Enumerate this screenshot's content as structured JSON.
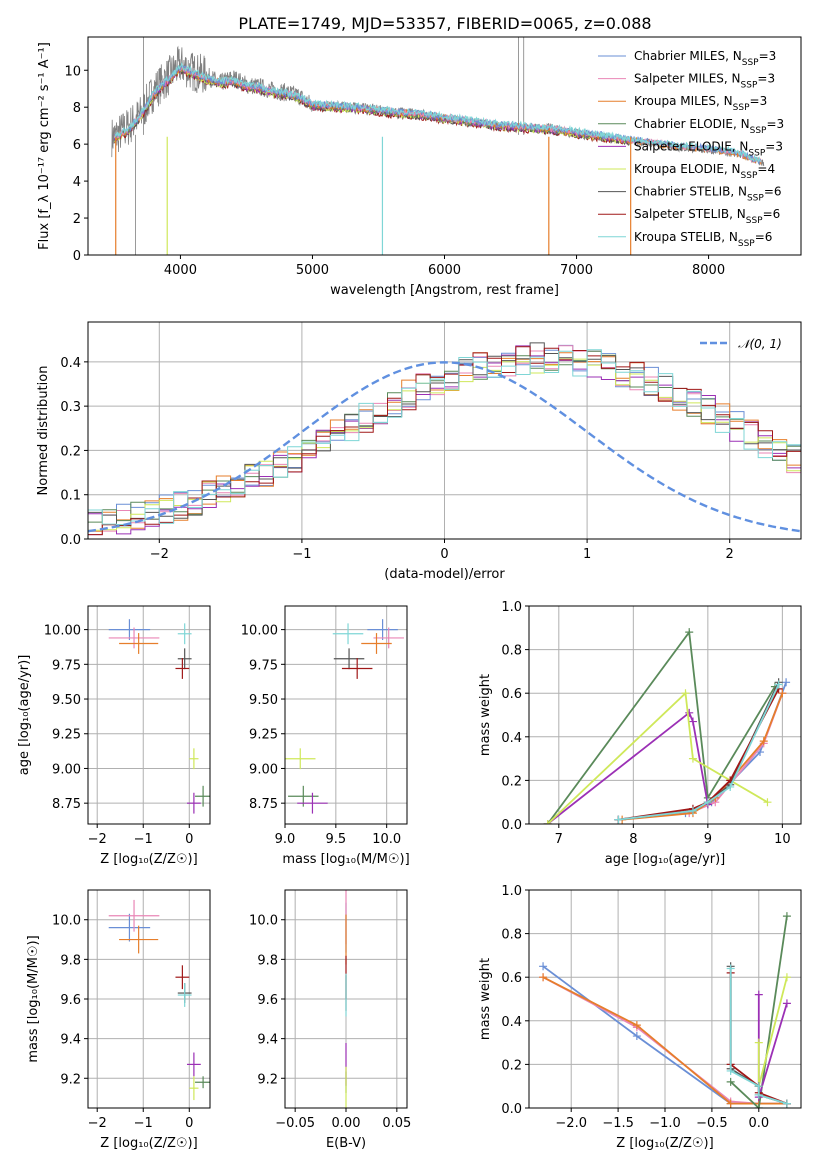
{
  "figure_title": "PLATE=1749, MJD=53357, FIBERID=0065, z=0.088",
  "colors": {
    "chabrier_miles": "#6a8fd6",
    "salpeter_miles": "#e986b6",
    "kroupa_miles": "#e67e2b",
    "chabrier_elodie": "#5a8a5a",
    "salpeter_elodie": "#9b30b5",
    "kroupa_elodie": "#cfe85a",
    "chabrier_stelib": "#555555",
    "salpeter_stelib": "#a01818",
    "kroupa_stelib": "#7fd6d6",
    "data": "#808080",
    "normal": "#6090e0"
  },
  "chart_data": [
    {
      "id": "spectrum",
      "type": "line",
      "title": "PLATE=1749, MJD=53357, FIBERID=0065, z=0.088",
      "xlabel": "wavelength [Angstrom, rest frame]",
      "ylabel": "Flux [f_λ 10⁻¹⁷ erg cm⁻² s⁻¹ A⁻¹]",
      "xlim": [
        3300,
        8700
      ],
      "ylim": [
        0,
        11.8
      ],
      "xticks": [
        "4000",
        "5000",
        "6000",
        "7000",
        "8000"
      ],
      "yticks": [
        "0",
        "2",
        "4",
        "6",
        "8",
        "10"
      ],
      "grid": false,
      "legend_position": "top-right",
      "legend": [
        "Chabrier MILES, N_SSP=3",
        "Salpeter MILES, N_SSP=3",
        "Kroupa MILES, N_SSP=3",
        "Chabrier ELODIE, N_SSP=3",
        "Salpeter ELODIE, N_SSP=3",
        "Kroupa ELODIE, N_SSP=4",
        "Chabrier STELIB, N_SSP=6",
        "Salpeter STELIB, N_SSP=6",
        "Kroupa STELIB, N_SSP=6"
      ],
      "data_points": [
        [
          3500,
          6.4
        ],
        [
          3600,
          6.9
        ],
        [
          3700,
          7.6
        ],
        [
          3800,
          8.9
        ],
        [
          3900,
          9.6
        ],
        [
          4000,
          10.3
        ],
        [
          4100,
          9.9
        ],
        [
          4200,
          9.7
        ],
        [
          4300,
          9.3
        ],
        [
          4400,
          9.6
        ],
        [
          4500,
          9.2
        ],
        [
          4600,
          9.1
        ],
        [
          4700,
          8.9
        ],
        [
          4800,
          8.8
        ],
        [
          4900,
          8.6
        ],
        [
          5000,
          8.1
        ],
        [
          5200,
          8.1
        ],
        [
          5400,
          8.0
        ],
        [
          5600,
          7.8
        ],
        [
          5800,
          7.7
        ],
        [
          6000,
          7.4
        ],
        [
          6200,
          7.2
        ],
        [
          6400,
          7.0
        ],
        [
          6600,
          6.9
        ],
        [
          6800,
          6.9
        ],
        [
          7000,
          6.6
        ],
        [
          7200,
          6.4
        ],
        [
          7400,
          6.2
        ],
        [
          7600,
          6.0
        ],
        [
          7800,
          5.8
        ],
        [
          8000,
          5.7
        ],
        [
          8200,
          5.5
        ],
        [
          8400,
          5.0
        ]
      ],
      "model_points": [
        [
          3500,
          6.3
        ],
        [
          3600,
          6.7
        ],
        [
          3700,
          7.5
        ],
        [
          3800,
          8.7
        ],
        [
          3900,
          9.4
        ],
        [
          4000,
          10.1
        ],
        [
          4100,
          9.8
        ],
        [
          4200,
          9.5
        ],
        [
          4300,
          9.3
        ],
        [
          4400,
          9.4
        ],
        [
          4500,
          9.1
        ],
        [
          4600,
          9.0
        ],
        [
          4700,
          8.8
        ],
        [
          4800,
          8.7
        ],
        [
          4900,
          8.5
        ],
        [
          5000,
          8.1
        ],
        [
          5200,
          8.0
        ],
        [
          5400,
          7.9
        ],
        [
          5600,
          7.7
        ],
        [
          5800,
          7.6
        ],
        [
          6000,
          7.4
        ],
        [
          6200,
          7.2
        ],
        [
          6400,
          7.0
        ],
        [
          6600,
          6.9
        ],
        [
          6800,
          6.8
        ],
        [
          7000,
          6.6
        ],
        [
          7200,
          6.4
        ],
        [
          7400,
          6.2
        ],
        [
          7600,
          6.0
        ],
        [
          7800,
          5.8
        ],
        [
          8000,
          5.7
        ],
        [
          8200,
          5.5
        ],
        [
          8400,
          5.0
        ]
      ]
    },
    {
      "id": "residuals",
      "type": "line",
      "xlabel": "(data-model)/error",
      "ylabel": "Normed distribution",
      "xlim": [
        -2.5,
        2.5
      ],
      "ylim": [
        0,
        0.49
      ],
      "xticks": [
        "−2",
        "−1",
        "0",
        "1",
        "2"
      ],
      "yticks": [
        "0.0",
        "0.1",
        "0.2",
        "0.3",
        "0.4"
      ],
      "grid": true,
      "legend_position": "top-right",
      "legend": [
        "𝒩(0, 1)"
      ],
      "bin_width": 0.1,
      "hist_base": [
        0.035,
        0.04,
        0.045,
        0.05,
        0.058,
        0.066,
        0.075,
        0.086,
        0.097,
        0.109,
        0.122,
        0.136,
        0.151,
        0.167,
        0.183,
        0.2,
        0.218,
        0.236,
        0.254,
        0.272,
        0.29,
        0.307,
        0.324,
        0.339,
        0.354,
        0.367,
        0.378,
        0.388,
        0.396,
        0.402,
        0.406,
        0.408,
        0.408,
        0.406,
        0.402,
        0.396,
        0.388,
        0.378,
        0.367,
        0.354,
        0.339,
        0.324,
        0.307,
        0.29,
        0.272,
        0.254,
        0.236,
        0.218,
        0.2,
        0.183
      ]
    },
    {
      "id": "age_vs_Z",
      "type": "scatter",
      "xlabel": "Z [log₁₀(Z/Z☉)]",
      "ylabel": "age [log₁₀(age/yr)]",
      "xlim": [
        -2.2,
        0.45
      ],
      "ylim": [
        8.6,
        10.17
      ],
      "xticks": [
        "−2",
        "−1",
        "0"
      ],
      "yticks": [
        "8.75",
        "9.00",
        "9.25",
        "9.50",
        "9.75",
        "10.00"
      ],
      "grid": true
    },
    {
      "id": "age_vs_mass",
      "type": "scatter",
      "xlabel": "mass [log₁₀(M/M☉)]",
      "ylabel": "",
      "xlim": [
        9.0,
        10.2
      ],
      "ylim": [
        8.6,
        10.17
      ],
      "xticks": [
        "9.0",
        "9.5",
        "10.0"
      ],
      "yticks": [
        "8.75",
        "9.00",
        "9.25",
        "9.50",
        "9.75",
        "10.00"
      ],
      "grid": true
    },
    {
      "id": "weight_vs_age",
      "type": "line",
      "xlabel": "age  [log₁₀(age/yr)]",
      "ylabel": "mass weight",
      "xlim": [
        6.6,
        10.25
      ],
      "ylim": [
        0,
        1.0
      ],
      "xticks": [
        "7",
        "8",
        "9",
        "10"
      ],
      "yticks": [
        "0.0",
        "0.2",
        "0.4",
        "0.6",
        "0.8",
        "1.0"
      ],
      "grid": true
    },
    {
      "id": "mass_vs_Z",
      "type": "scatter",
      "xlabel": "Z [log₁₀(Z/Z☉)]",
      "ylabel": "mass [log₁₀(M/M☉)]",
      "xlim": [
        -2.2,
        0.45
      ],
      "ylim": [
        9.05,
        10.15
      ],
      "xticks": [
        "−2",
        "−1",
        "0"
      ],
      "yticks": [
        "9.2",
        "9.4",
        "9.6",
        "9.8",
        "10.0"
      ],
      "grid": true
    },
    {
      "id": "mass_vs_ebv",
      "type": "scatter",
      "xlabel": "E(B-V)",
      "ylabel": "",
      "xlim": [
        -0.06,
        0.06
      ],
      "ylim": [
        9.05,
        10.15
      ],
      "xticks": [
        "−0.05",
        "0.00",
        "0.05"
      ],
      "yticks": [
        "9.2",
        "9.4",
        "9.6",
        "9.8",
        "10.0"
      ],
      "grid": true
    },
    {
      "id": "weight_vs_Z",
      "type": "line",
      "xlabel": "Z [log₁₀(Z/Z☉)]",
      "ylabel": "mass weight",
      "xlim": [
        -2.45,
        0.45
      ],
      "ylim": [
        0,
        1.0
      ],
      "xticks": [
        "−2.0",
        "−1.5",
        "−1.0",
        "−0.5",
        "0.0"
      ],
      "yticks": [
        "0.0",
        "0.2",
        "0.4",
        "0.6",
        "0.8",
        "1.0"
      ],
      "grid": true
    }
  ],
  "models": [
    {
      "key": "chabrier_miles",
      "age": 10.0,
      "age_err": 0.03,
      "Z": -1.3,
      "Z_err": 0.9,
      "mass": 9.96,
      "mass_err": 0.07,
      "ebv": 0,
      "w_age": [
        [
          7.8,
          0.02
        ],
        [
          8.7,
          0.05
        ],
        [
          9.05,
          0.1
        ],
        [
          9.7,
          0.33
        ],
        [
          10.05,
          0.65
        ]
      ],
      "w_Z": [
        [
          -2.3,
          0.65
        ],
        [
          -1.3,
          0.33
        ],
        [
          -0.3,
          0.02
        ],
        [
          0.0,
          0.02
        ],
        [
          0.3,
          0.02
        ]
      ]
    },
    {
      "key": "salpeter_miles",
      "age": 9.94,
      "age_err": 0.03,
      "Z": -1.2,
      "Z_err": 1.1,
      "mass": 10.02,
      "mass_err": 0.08,
      "ebv": 0,
      "w_age": [
        [
          7.8,
          0.02
        ],
        [
          8.75,
          0.05
        ],
        [
          9.1,
          0.1
        ],
        [
          9.75,
          0.37
        ],
        [
          10.0,
          0.6
        ]
      ],
      "w_Z": [
        [
          -2.3,
          0.6
        ],
        [
          -1.3,
          0.37
        ],
        [
          -0.3,
          0.03
        ],
        [
          0.0,
          0.02
        ],
        [
          0.3,
          0.02
        ]
      ]
    },
    {
      "key": "kroupa_miles",
      "age": 9.9,
      "age_err": 0.03,
      "Z": -1.1,
      "Z_err": 0.85,
      "mass": 9.9,
      "mass_err": 0.07,
      "ebv": 0,
      "w_age": [
        [
          7.85,
          0.02
        ],
        [
          8.8,
          0.05
        ],
        [
          9.1,
          0.12
        ],
        [
          9.75,
          0.38
        ],
        [
          10.0,
          0.6
        ]
      ],
      "w_Z": [
        [
          -2.3,
          0.6
        ],
        [
          -1.3,
          0.38
        ],
        [
          -0.3,
          0.02
        ],
        [
          0.0,
          0.02
        ],
        [
          0.3,
          0.02
        ]
      ]
    },
    {
      "key": "chabrier_elodie",
      "age": 8.8,
      "age_err": 0.03,
      "Z": 0.3,
      "Z_err": 0.35,
      "mass": 9.18,
      "mass_err": 0.03,
      "ebv": 0,
      "w_age": [
        [
          6.85,
          0.0
        ],
        [
          8.75,
          0.88
        ],
        [
          9.0,
          0.12
        ],
        [
          9.9,
          0.63
        ]
      ],
      "w_Z": [
        [
          -0.3,
          0.12
        ],
        [
          0.0,
          0.0
        ],
        [
          0.3,
          0.88
        ]
      ]
    },
    {
      "key": "salpeter_elodie",
      "age": 8.75,
      "age_err": 0.03,
      "Z": 0.1,
      "Z_err": 0.3,
      "mass": 9.27,
      "mass_err": 0.06,
      "ebv": 0,
      "w_age": [
        [
          6.85,
          0.0
        ],
        [
          8.75,
          0.51
        ],
        [
          8.8,
          0.47
        ],
        [
          9.0,
          0.09
        ]
      ],
      "w_Z": [
        [
          0.0,
          0.52
        ],
        [
          0.0,
          0.05
        ],
        [
          0.3,
          0.48
        ]
      ]
    },
    {
      "key": "kroupa_elodie",
      "age": 9.07,
      "age_err": 0.03,
      "Z": 0.1,
      "Z_err": 0.2,
      "mass": 9.15,
      "mass_err": 0.06,
      "ebv": 0,
      "w_age": [
        [
          6.85,
          0.0
        ],
        [
          8.7,
          0.6
        ],
        [
          8.8,
          0.3
        ],
        [
          9.8,
          0.1
        ]
      ],
      "w_Z": [
        [
          0.0,
          0.3
        ],
        [
          0.0,
          0.1
        ],
        [
          0.3,
          0.6
        ]
      ]
    },
    {
      "key": "chabrier_stelib",
      "age": 9.79,
      "age_err": 0.03,
      "Z": -0.1,
      "Z_err": 0.3,
      "mass": 9.63,
      "mass_err": 0.05,
      "ebv": 0,
      "w_age": [
        [
          7.8,
          0.02
        ],
        [
          8.8,
          0.06
        ],
        [
          9.0,
          0.1
        ],
        [
          9.3,
          0.18
        ],
        [
          9.95,
          0.65
        ]
      ],
      "w_Z": [
        [
          -0.3,
          0.65
        ],
        [
          -0.3,
          0.18
        ],
        [
          0.0,
          0.1
        ],
        [
          0.0,
          0.06
        ],
        [
          0.3,
          0.02
        ]
      ]
    },
    {
      "key": "salpeter_stelib",
      "age": 9.72,
      "age_err": 0.03,
      "Z": -0.15,
      "Z_err": 0.3,
      "mass": 9.71,
      "mass_err": 0.06,
      "ebv": 0,
      "w_age": [
        [
          7.8,
          0.02
        ],
        [
          8.8,
          0.07
        ],
        [
          9.0,
          0.1
        ],
        [
          9.3,
          0.2
        ],
        [
          9.95,
          0.62
        ]
      ],
      "w_Z": [
        [
          -0.3,
          0.62
        ],
        [
          -0.3,
          0.2
        ],
        [
          0.0,
          0.1
        ],
        [
          0.0,
          0.07
        ],
        [
          0.3,
          0.02
        ]
      ]
    },
    {
      "key": "kroupa_stelib",
      "age": 9.97,
      "age_err": 0.03,
      "Z": -0.1,
      "Z_err": 0.3,
      "mass": 9.62,
      "mass_err": 0.06,
      "ebv": 0,
      "w_age": [
        [
          7.8,
          0.02
        ],
        [
          8.8,
          0.06
        ],
        [
          9.0,
          0.1
        ],
        [
          9.3,
          0.17
        ],
        [
          9.95,
          0.64
        ]
      ],
      "w_Z": [
        [
          -0.3,
          0.64
        ],
        [
          -0.3,
          0.17
        ],
        [
          0.0,
          0.1
        ],
        [
          0.0,
          0.06
        ],
        [
          0.3,
          0.02
        ]
      ]
    }
  ]
}
